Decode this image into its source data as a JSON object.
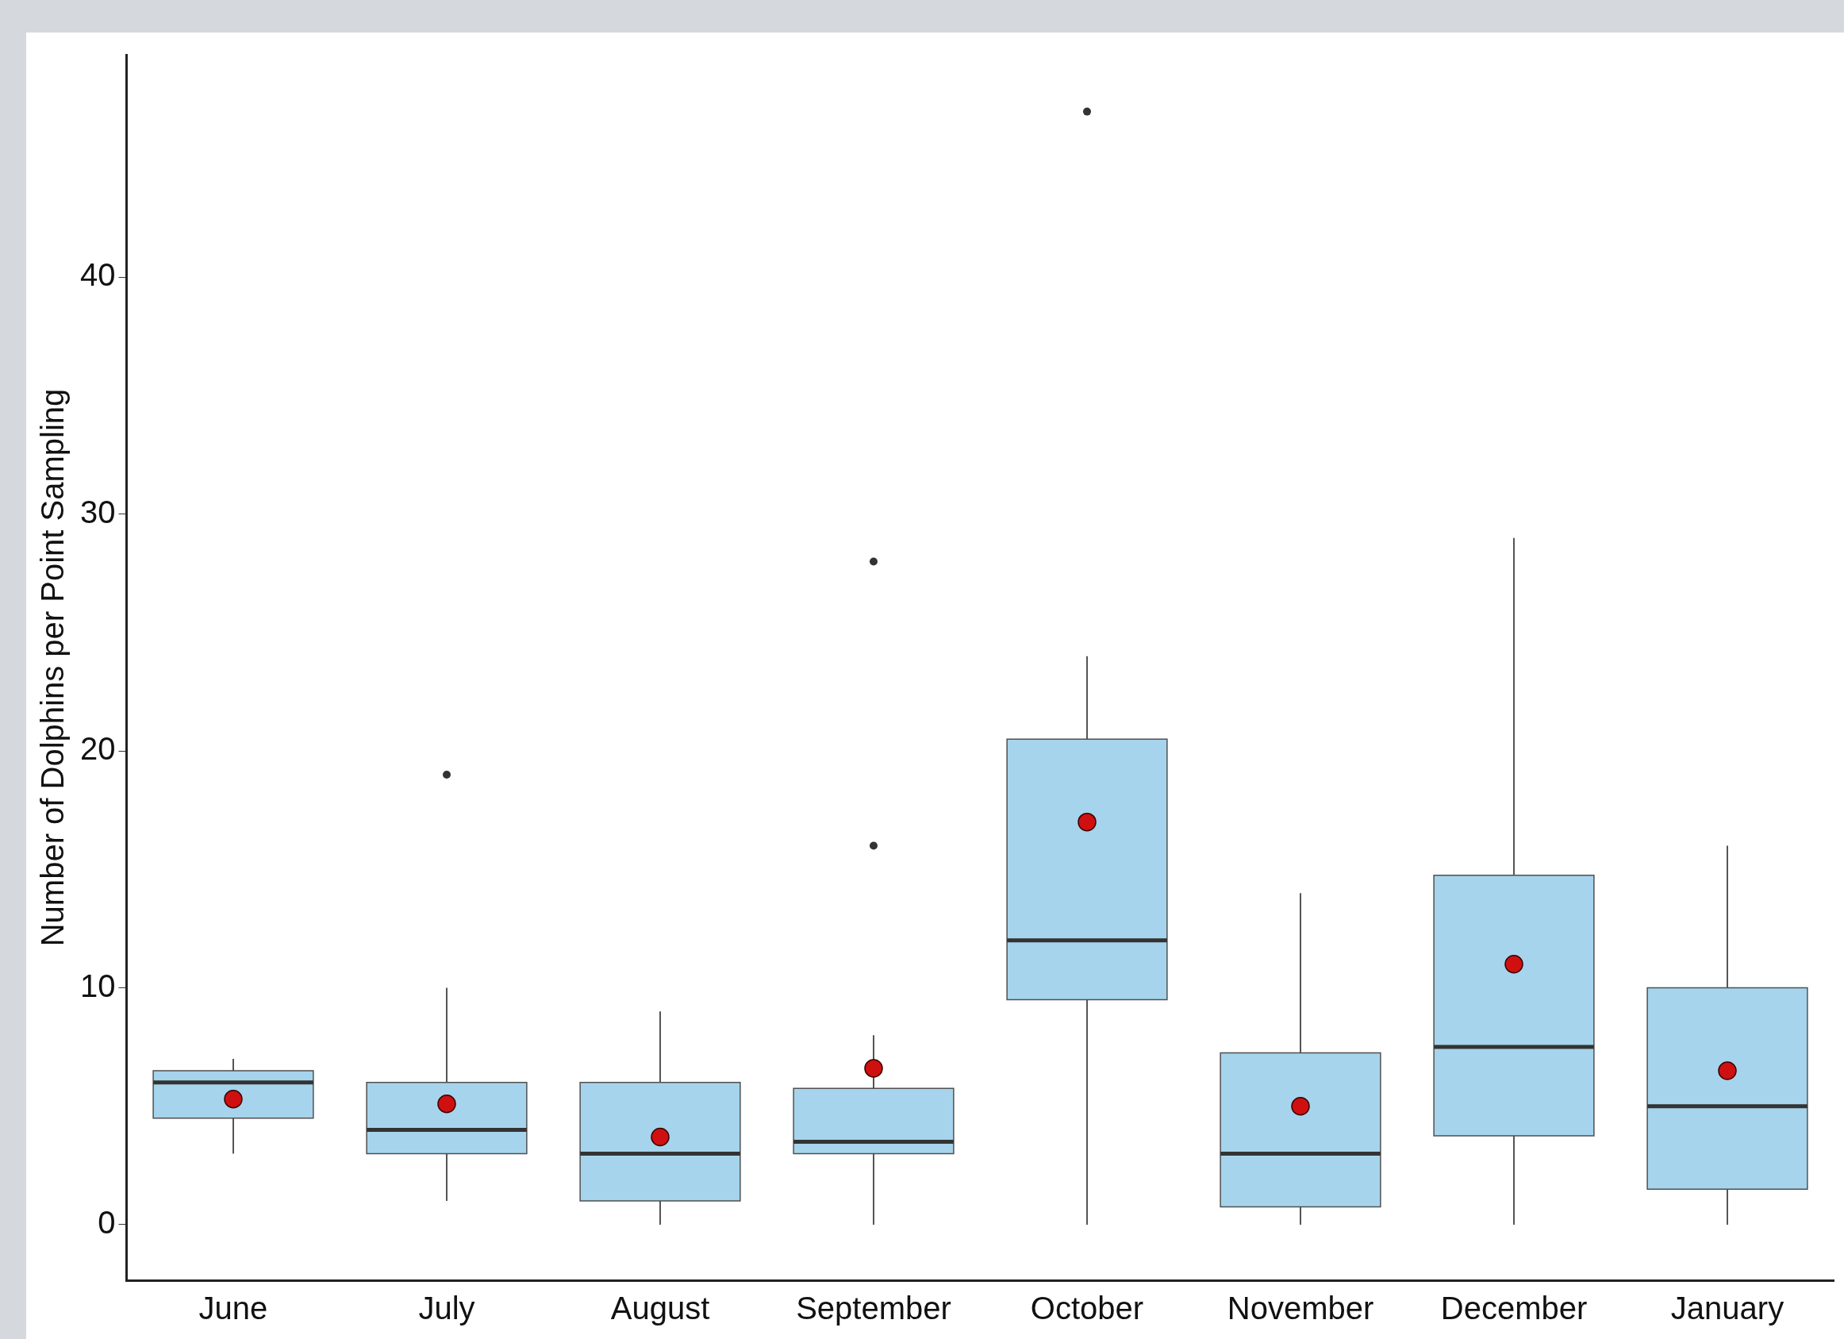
{
  "chart_data": {
    "type": "box",
    "ylabel": "Number of Dolphins per Point Sampling",
    "categories": [
      "June",
      "July",
      "August",
      "September",
      "October",
      "November",
      "December",
      "January"
    ],
    "color": "#a6d4ec",
    "boxes": [
      {
        "low": 3,
        "q1": 4.5,
        "median": 6,
        "q3": 6.5,
        "high": 7,
        "mean": 5.3
      },
      {
        "low": 1,
        "q1": 3,
        "median": 4,
        "q3": 6,
        "high": 10,
        "mean": 5.1,
        "outliers": [
          19
        ]
      },
      {
        "low": 0,
        "q1": 1,
        "median": 3,
        "q3": 6,
        "high": 9,
        "mean": 3.7
      },
      {
        "low": 0,
        "q1": 3,
        "median": 3.5,
        "q3": 5.75,
        "high": 8,
        "mean": 6.6,
        "outliers": [
          16,
          28
        ]
      },
      {
        "low": 0,
        "q1": 9.5,
        "median": 12,
        "q3": 20.5,
        "high": 24,
        "mean": 17,
        "outliers": [
          47
        ]
      },
      {
        "low": 0,
        "q1": 0.75,
        "median": 3,
        "q3": 7.25,
        "high": 14,
        "mean": 5
      },
      {
        "low": 0,
        "q1": 3.75,
        "median": 7.5,
        "q3": 14.75,
        "high": 29,
        "mean": 11
      },
      {
        "low": 0,
        "q1": 1.5,
        "median": 5,
        "q3": 10,
        "high": 16,
        "mean": 6.5
      }
    ],
    "ylim": [
      -2.35,
      49.4
    ],
    "yticks": [
      0,
      10,
      20,
      30,
      40
    ],
    "grid": false,
    "legend": false
  }
}
